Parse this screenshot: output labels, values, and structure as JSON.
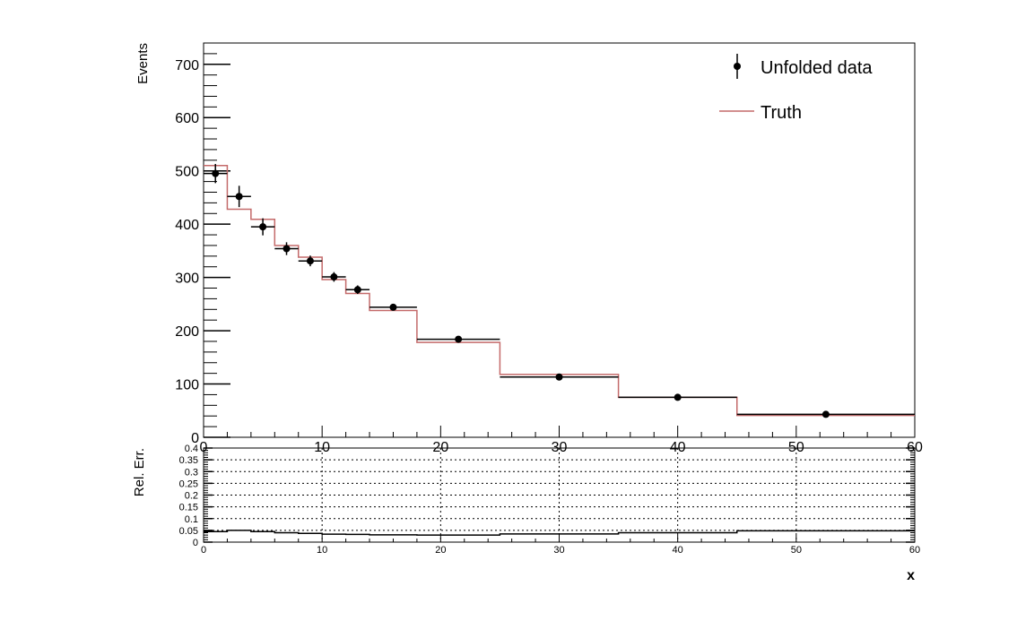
{
  "chart_data": [
    {
      "type": "line",
      "panel": "main",
      "ylabel": "Events",
      "xlim": [
        0,
        60
      ],
      "ylim": [
        0,
        740
      ],
      "x_ticks": [
        0,
        10,
        20,
        30,
        40,
        50,
        60
      ],
      "y_ticks": [
        0,
        100,
        200,
        300,
        400,
        500,
        600,
        700
      ],
      "bin_edges": [
        0,
        2,
        4,
        6,
        8,
        10,
        12,
        14,
        18,
        25,
        35,
        45,
        60
      ],
      "series": [
        {
          "name": "Unfolded data",
          "style": "points-with-error-bars",
          "color": "#000000",
          "values": [
            495,
            452,
            395,
            354,
            331,
            301,
            277,
            244,
            184,
            113,
            75,
            43
          ],
          "errors": [
            18,
            20,
            16,
            12,
            10,
            9,
            8,
            6,
            5,
            4,
            3,
            2
          ]
        },
        {
          "name": "Truth",
          "style": "step",
          "color": "#c46a6a",
          "values": [
            510,
            428,
            409,
            360,
            338,
            296,
            270,
            238,
            178,
            118,
            75,
            41
          ]
        }
      ],
      "legend": {
        "position": "top-right",
        "entries": [
          "Unfolded data",
          "Truth"
        ]
      }
    },
    {
      "type": "line",
      "panel": "ratio",
      "ylabel": "Rel. Err.",
      "xlabel": "x",
      "xlim": [
        0,
        60
      ],
      "ylim": [
        0,
        0.4
      ],
      "x_ticks": [
        0,
        10,
        20,
        30,
        40,
        50,
        60
      ],
      "y_ticks": [
        0,
        0.05,
        0.1,
        0.15,
        0.2,
        0.25,
        0.3,
        0.35,
        0.4
      ],
      "y_tick_labels": [
        "0",
        "0.05",
        "0.1",
        "0.15",
        "0.2",
        "0.25",
        "0.3",
        "0.35",
        "0.4"
      ],
      "grid": true,
      "bin_edges": [
        0,
        2,
        4,
        6,
        8,
        10,
        12,
        14,
        18,
        25,
        35,
        45,
        60
      ],
      "series": [
        {
          "style": "step",
          "color": "#000000",
          "values": [
            0.045,
            0.05,
            0.045,
            0.04,
            0.037,
            0.034,
            0.033,
            0.031,
            0.03,
            0.035,
            0.04,
            0.048
          ]
        }
      ]
    }
  ]
}
